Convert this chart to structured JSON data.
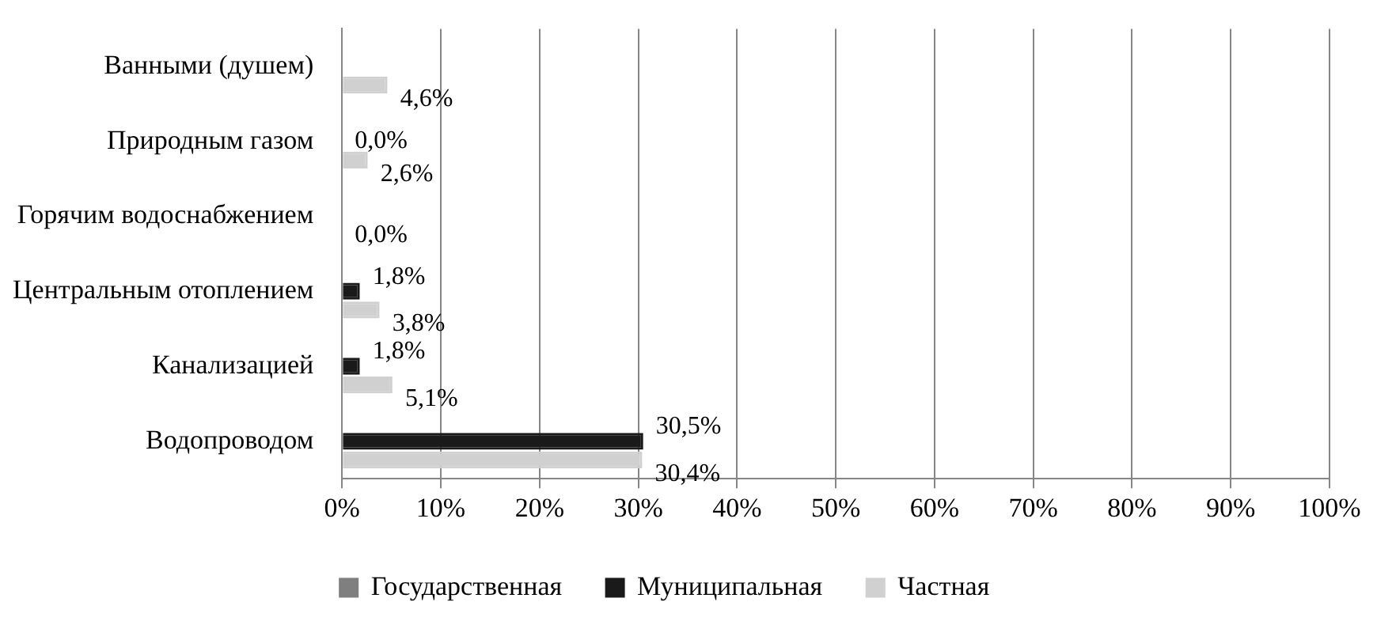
{
  "chart_data": {
    "type": "bar",
    "orientation": "horizontal",
    "categories": [
      "Ванными (душем)",
      "Природным газом",
      "Горячим водоснабжением",
      "Центральным отоплением",
      "Канализацией",
      "Водопроводом"
    ],
    "series": [
      {
        "name": "Государственная",
        "color": "#7f7f7f",
        "values": [
          null,
          null,
          null,
          null,
          null,
          null
        ]
      },
      {
        "name": "Муниципальная",
        "color": "#1a1a1a",
        "values": [
          null,
          0.0,
          null,
          1.8,
          1.8,
          30.5
        ],
        "value_labels": [
          null,
          "0,0%",
          null,
          "1,8%",
          "1,8%",
          "30,5%"
        ]
      },
      {
        "name": "Частная",
        "color": "#d0d0d0",
        "values": [
          4.6,
          2.6,
          0.0,
          3.8,
          5.1,
          30.4
        ],
        "value_labels": [
          "4,6%",
          "2,6%",
          "0,0%",
          "3,8%",
          "5,1%",
          "30,4%"
        ]
      }
    ],
    "xlim": [
      0,
      100
    ],
    "xticks": [
      {
        "value": 0,
        "label": "0%"
      },
      {
        "value": 10,
        "label": "10%"
      },
      {
        "value": 20,
        "label": "20%"
      },
      {
        "value": 30,
        "label": "30%"
      },
      {
        "value": 40,
        "label": "40%"
      },
      {
        "value": 50,
        "label": "50%"
      },
      {
        "value": 60,
        "label": "60%"
      },
      {
        "value": 70,
        "label": "70%"
      },
      {
        "value": 80,
        "label": "80%"
      },
      {
        "value": 90,
        "label": "90%"
      },
      {
        "value": 100,
        "label": "100%"
      }
    ],
    "grid": "x",
    "legend": "bottom"
  }
}
